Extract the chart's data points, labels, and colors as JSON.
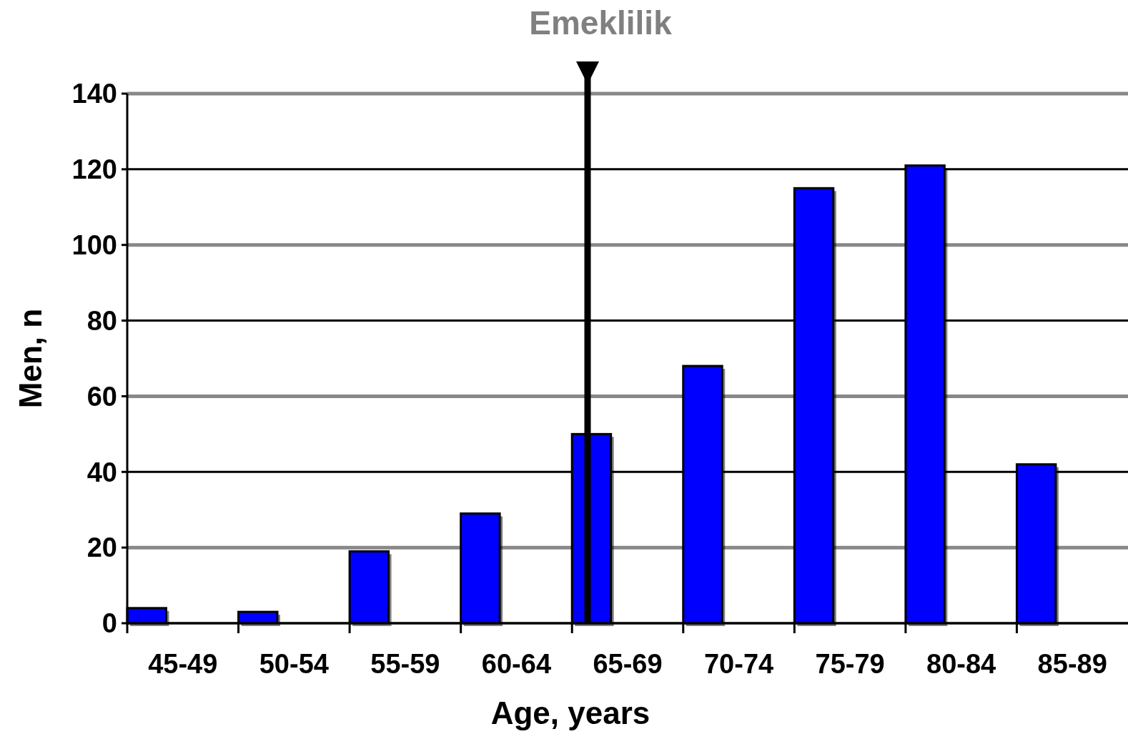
{
  "chart_data": {
    "type": "bar",
    "xlabel": "Age, years",
    "ylabel": "Men, n",
    "categories": [
      "45-49",
      "50-54",
      "55-59",
      "60-64",
      "65-69",
      "70-74",
      "75-79",
      "80-84",
      "85-89"
    ],
    "values": [
      4,
      3,
      19,
      29,
      50,
      68,
      115,
      121,
      42
    ],
    "color": "#0000ff",
    "ylim": [
      0,
      140
    ],
    "yticks": [
      0,
      20,
      40,
      60,
      80,
      100,
      120,
      140
    ],
    "grid": "y",
    "ref_lines": [
      {
        "axis": "x",
        "value": "65-69",
        "label": "Emeklilik",
        "color": "#000000"
      }
    ]
  }
}
